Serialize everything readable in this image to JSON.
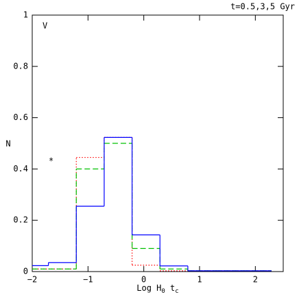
{
  "chart_data": {
    "type": "step-histogram",
    "annotation_top_right": "t=0.5,3,5 Gyr",
    "panel_label": "V",
    "marker_text": {
      "text": "*",
      "x": -1.66,
      "y": 0.43
    },
    "xlabel": [
      "Log H",
      "0",
      " t",
      "c"
    ],
    "ylabel": "N",
    "xlim": [
      -2,
      2.5
    ],
    "ylim": [
      0,
      1
    ],
    "xticks": [
      {
        "value": -2,
        "label": "−2"
      },
      {
        "value": -1,
        "label": "−1"
      },
      0,
      1,
      2
    ],
    "yticks": [
      0,
      0.2,
      0.4,
      0.6,
      0.8,
      1
    ],
    "bins": [
      -2,
      -1.71,
      -1.21,
      -0.71,
      -0.21,
      0.29,
      0.79,
      1.29,
      1.79,
      2.29
    ],
    "series": [
      {
        "color": "#ff0000",
        "line_style": "dotted",
        "values": [
          0.01,
          0.01,
          0.445,
          0.523,
          0.025,
          0.003,
          0.003,
          0.003,
          0.003
        ]
      },
      {
        "color": "#00c000",
        "line_style": "dashed",
        "values": [
          0.01,
          0.01,
          0.4,
          0.5,
          0.09,
          0.01,
          0.003,
          0.003,
          0.003
        ]
      },
      {
        "color": "#0000ff",
        "line_style": "solid",
        "values": [
          0.023,
          0.035,
          0.255,
          0.523,
          0.143,
          0.022,
          0.003,
          0.003,
          0.003
        ]
      }
    ]
  }
}
